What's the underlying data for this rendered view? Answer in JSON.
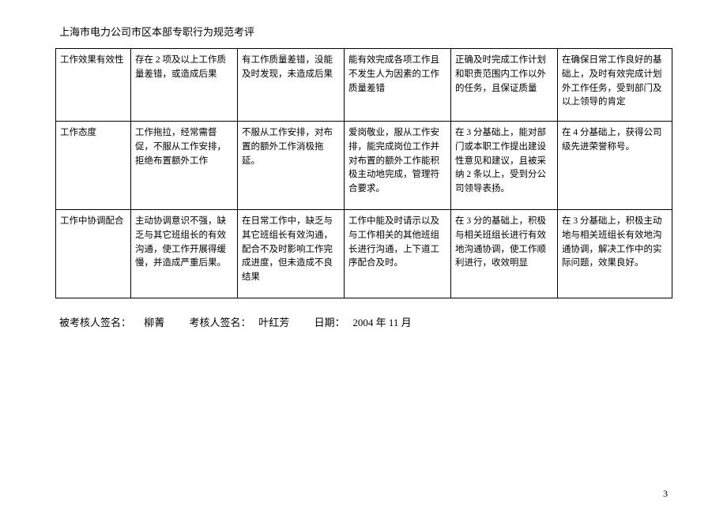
{
  "header": "上海市电力公司市区本部专职行为规范考评",
  "table": {
    "rows": [
      {
        "label": "工作效果有效性",
        "c1": "存在 2 项及以上工作质量差错，或造成后果",
        "c2": "有工作质量差错，没能及时发现，未造成后果",
        "c3": "能有效完成各项工作且不发生人为因素的工作质量差错",
        "c4": "正确及时完成工作计划和职责范围内工作以外的任务，且保证质量",
        "c5": "在确保日常工作良好的基础上，及时有效完成计划外工作任务，受到部门及以上领导的肯定"
      },
      {
        "label": "工作态度",
        "c1": "工作拖拉，经常需督促，不服从工作安排，拒绝布置额外工作",
        "c2": "不服从工作安排，对布置的额外工作消极拖延。",
        "c3": "爱岗敬业，服从工作安排，能完成岗位工作并对布置的额外工作能积极主动地完成，管理符合要求。",
        "c4": "在 3 分基础上，能对部门或本职工作提出建设性意见和建议，且被采纳 2 条以上，受到分公司领导表扬。",
        "c5": "在 4 分基础上，获得公司级先进荣誉称号。"
      },
      {
        "label": "工作中协调配合",
        "c1": "主动协调意识不强，缺乏与其它班组长的有效沟通，使工作开展得缓慢，并造成严重后果。",
        "c2": "在日常工作中，缺乏与其它班组长有效沟通，配合不及时影响工作完成进度，但未造成不良结果",
        "c3": "工作中能及时请示以及与工作相关的其他班组长进行沟通，上下道工序配合及时。",
        "c4": "在 3 分的基础上，积极与相关班组长进行有效地沟通协调，使工作顺利进行，收效明显",
        "c5": "在 3 分基础上，积极主动地与相关班组长有效地沟通协调，解决工作中的实际问题，效果良好。"
      }
    ]
  },
  "signature": {
    "assessee_label": "被考核人签名：",
    "assessee_name": "柳菁",
    "assessor_label": "考核人签名：",
    "assessor_name": "叶红芳",
    "date_label": "日期：",
    "date_value": "2004 年 11 月"
  },
  "page_number": "3"
}
